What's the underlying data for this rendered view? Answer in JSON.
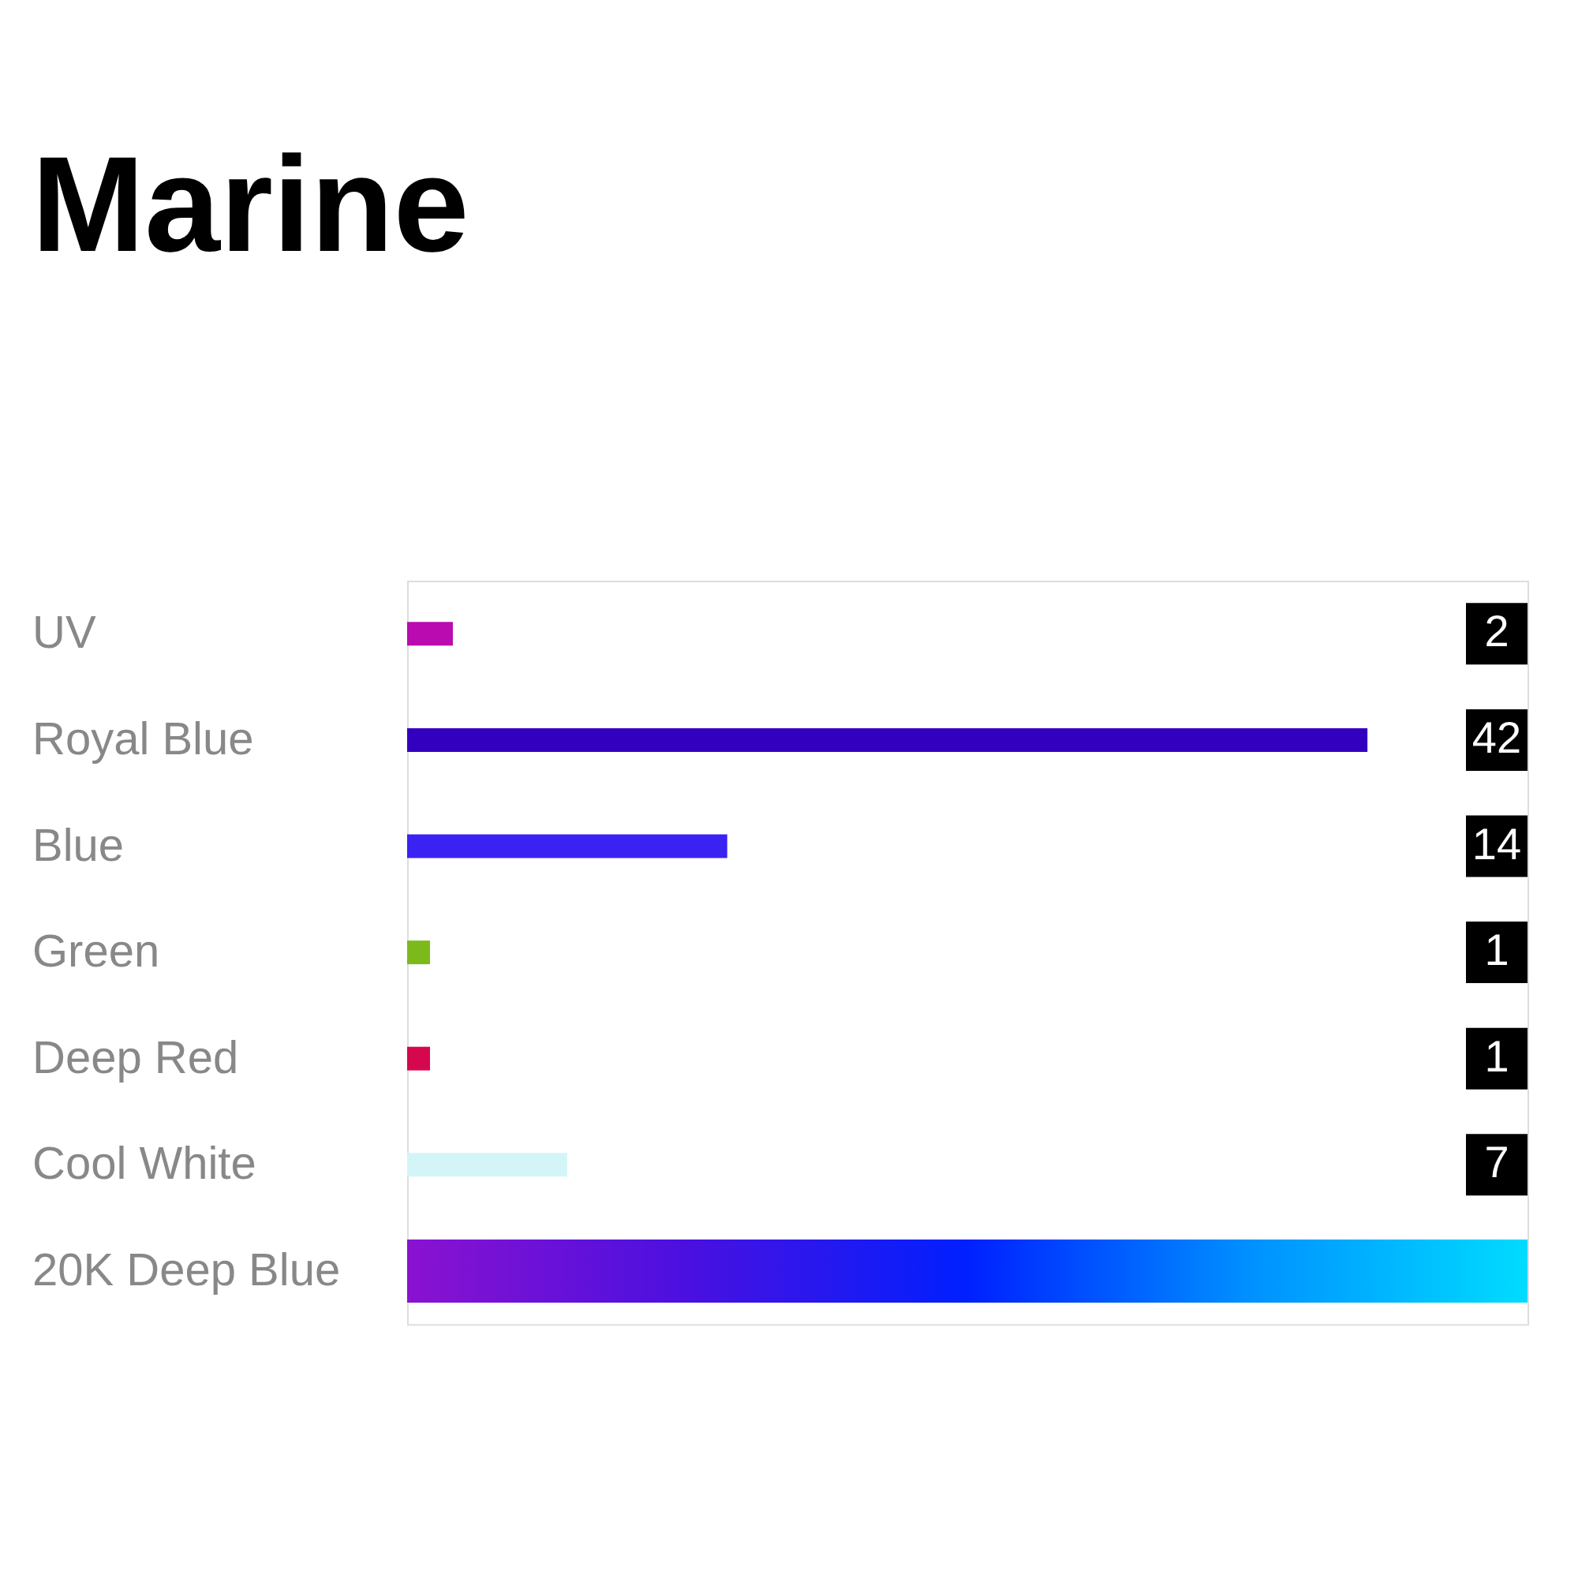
{
  "chart_data": {
    "type": "bar",
    "orientation": "horizontal",
    "title": "Marine",
    "categories": [
      "UV",
      "Royal Blue",
      "Blue",
      "Green",
      "Deep Red",
      "Cool White",
      "20K Deep Blue"
    ],
    "values": [
      2,
      42,
      14,
      1,
      1,
      7,
      49
    ],
    "value_labels": [
      "2",
      "42",
      "14",
      "1",
      "1",
      "7",
      null
    ],
    "colors": [
      "#b90bb0",
      "#3300c0",
      "#3a22f2",
      "#7cba1c",
      "#d5084f",
      "#d4f5f8",
      [
        "#8a12d0",
        "#4a10e0",
        "#0020ff",
        "#0090ff",
        "#00dcff"
      ]
    ]
  }
}
